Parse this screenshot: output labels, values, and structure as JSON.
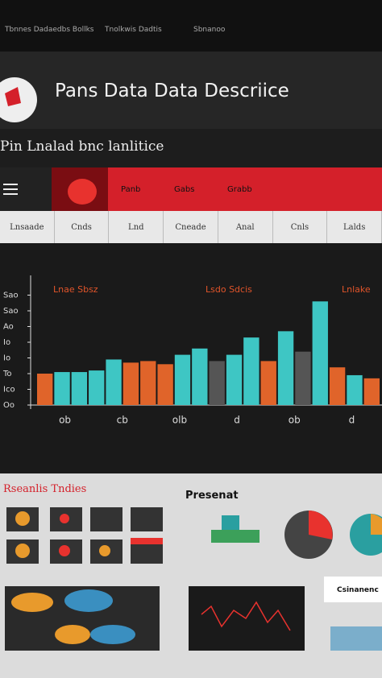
{
  "topbar": {
    "links": [
      "Tbnnes Dadaedbs Bollks",
      "Tnolkwis Dadtis",
      "Sbnanoo"
    ]
  },
  "header": {
    "title": "Pans Data Data Descriice",
    "subtitle": "Pin Lnalad bnc lanlitice"
  },
  "nav": {
    "items": [
      "Panb",
      "Gabs",
      "Grabb"
    ]
  },
  "tabs": [
    "Lnsaade",
    "Cnds",
    "Lnd",
    "Cneade",
    "Anal",
    "Cnls",
    "Lalds"
  ],
  "chart": {
    "type": "bar",
    "series_labels": [
      "Lnae Sbsz",
      "Lsdo Sdcis",
      "Lnlake"
    ],
    "x_labels": [
      "ob",
      "cb",
      "olb",
      "d",
      "ob",
      "d"
    ],
    "values": [
      20,
      21,
      21,
      22,
      29,
      27,
      28,
      26,
      32,
      36,
      28,
      32,
      43,
      28,
      47,
      34,
      66,
      24,
      19,
      17
    ],
    "colors": [
      "#e0642a",
      "#3ec6c4",
      "#3ec6c4",
      "#3ec6c4",
      "#3ec6c4",
      "#e0642a",
      "#e0642a",
      "#e0642a",
      "#3ec6c4",
      "#3ec6c4",
      "#555555",
      "#3ec6c4",
      "#3ec6c4",
      "#e0642a",
      "#3ec6c4",
      "#555555",
      "#3ec6c4",
      "#e0642a",
      "#3ec6c4",
      "#e0642a"
    ],
    "ylim": [
      0,
      80
    ],
    "yticks": [
      {
        "value": 0,
        "label": "Oo"
      },
      {
        "value": 10,
        "label": "Ico"
      },
      {
        "value": 20,
        "label": "To"
      },
      {
        "value": 30,
        "label": "Io"
      },
      {
        "value": 40,
        "label": "Io"
      },
      {
        "value": 50,
        "label": "Ao"
      },
      {
        "value": 60,
        "label": "Sao"
      },
      {
        "value": 70,
        "label": "Sao"
      }
    ]
  },
  "panels": {
    "left_title": "Rseanlis Tndies",
    "center_title": "Presenat",
    "right_title": "Csinanenc"
  }
}
